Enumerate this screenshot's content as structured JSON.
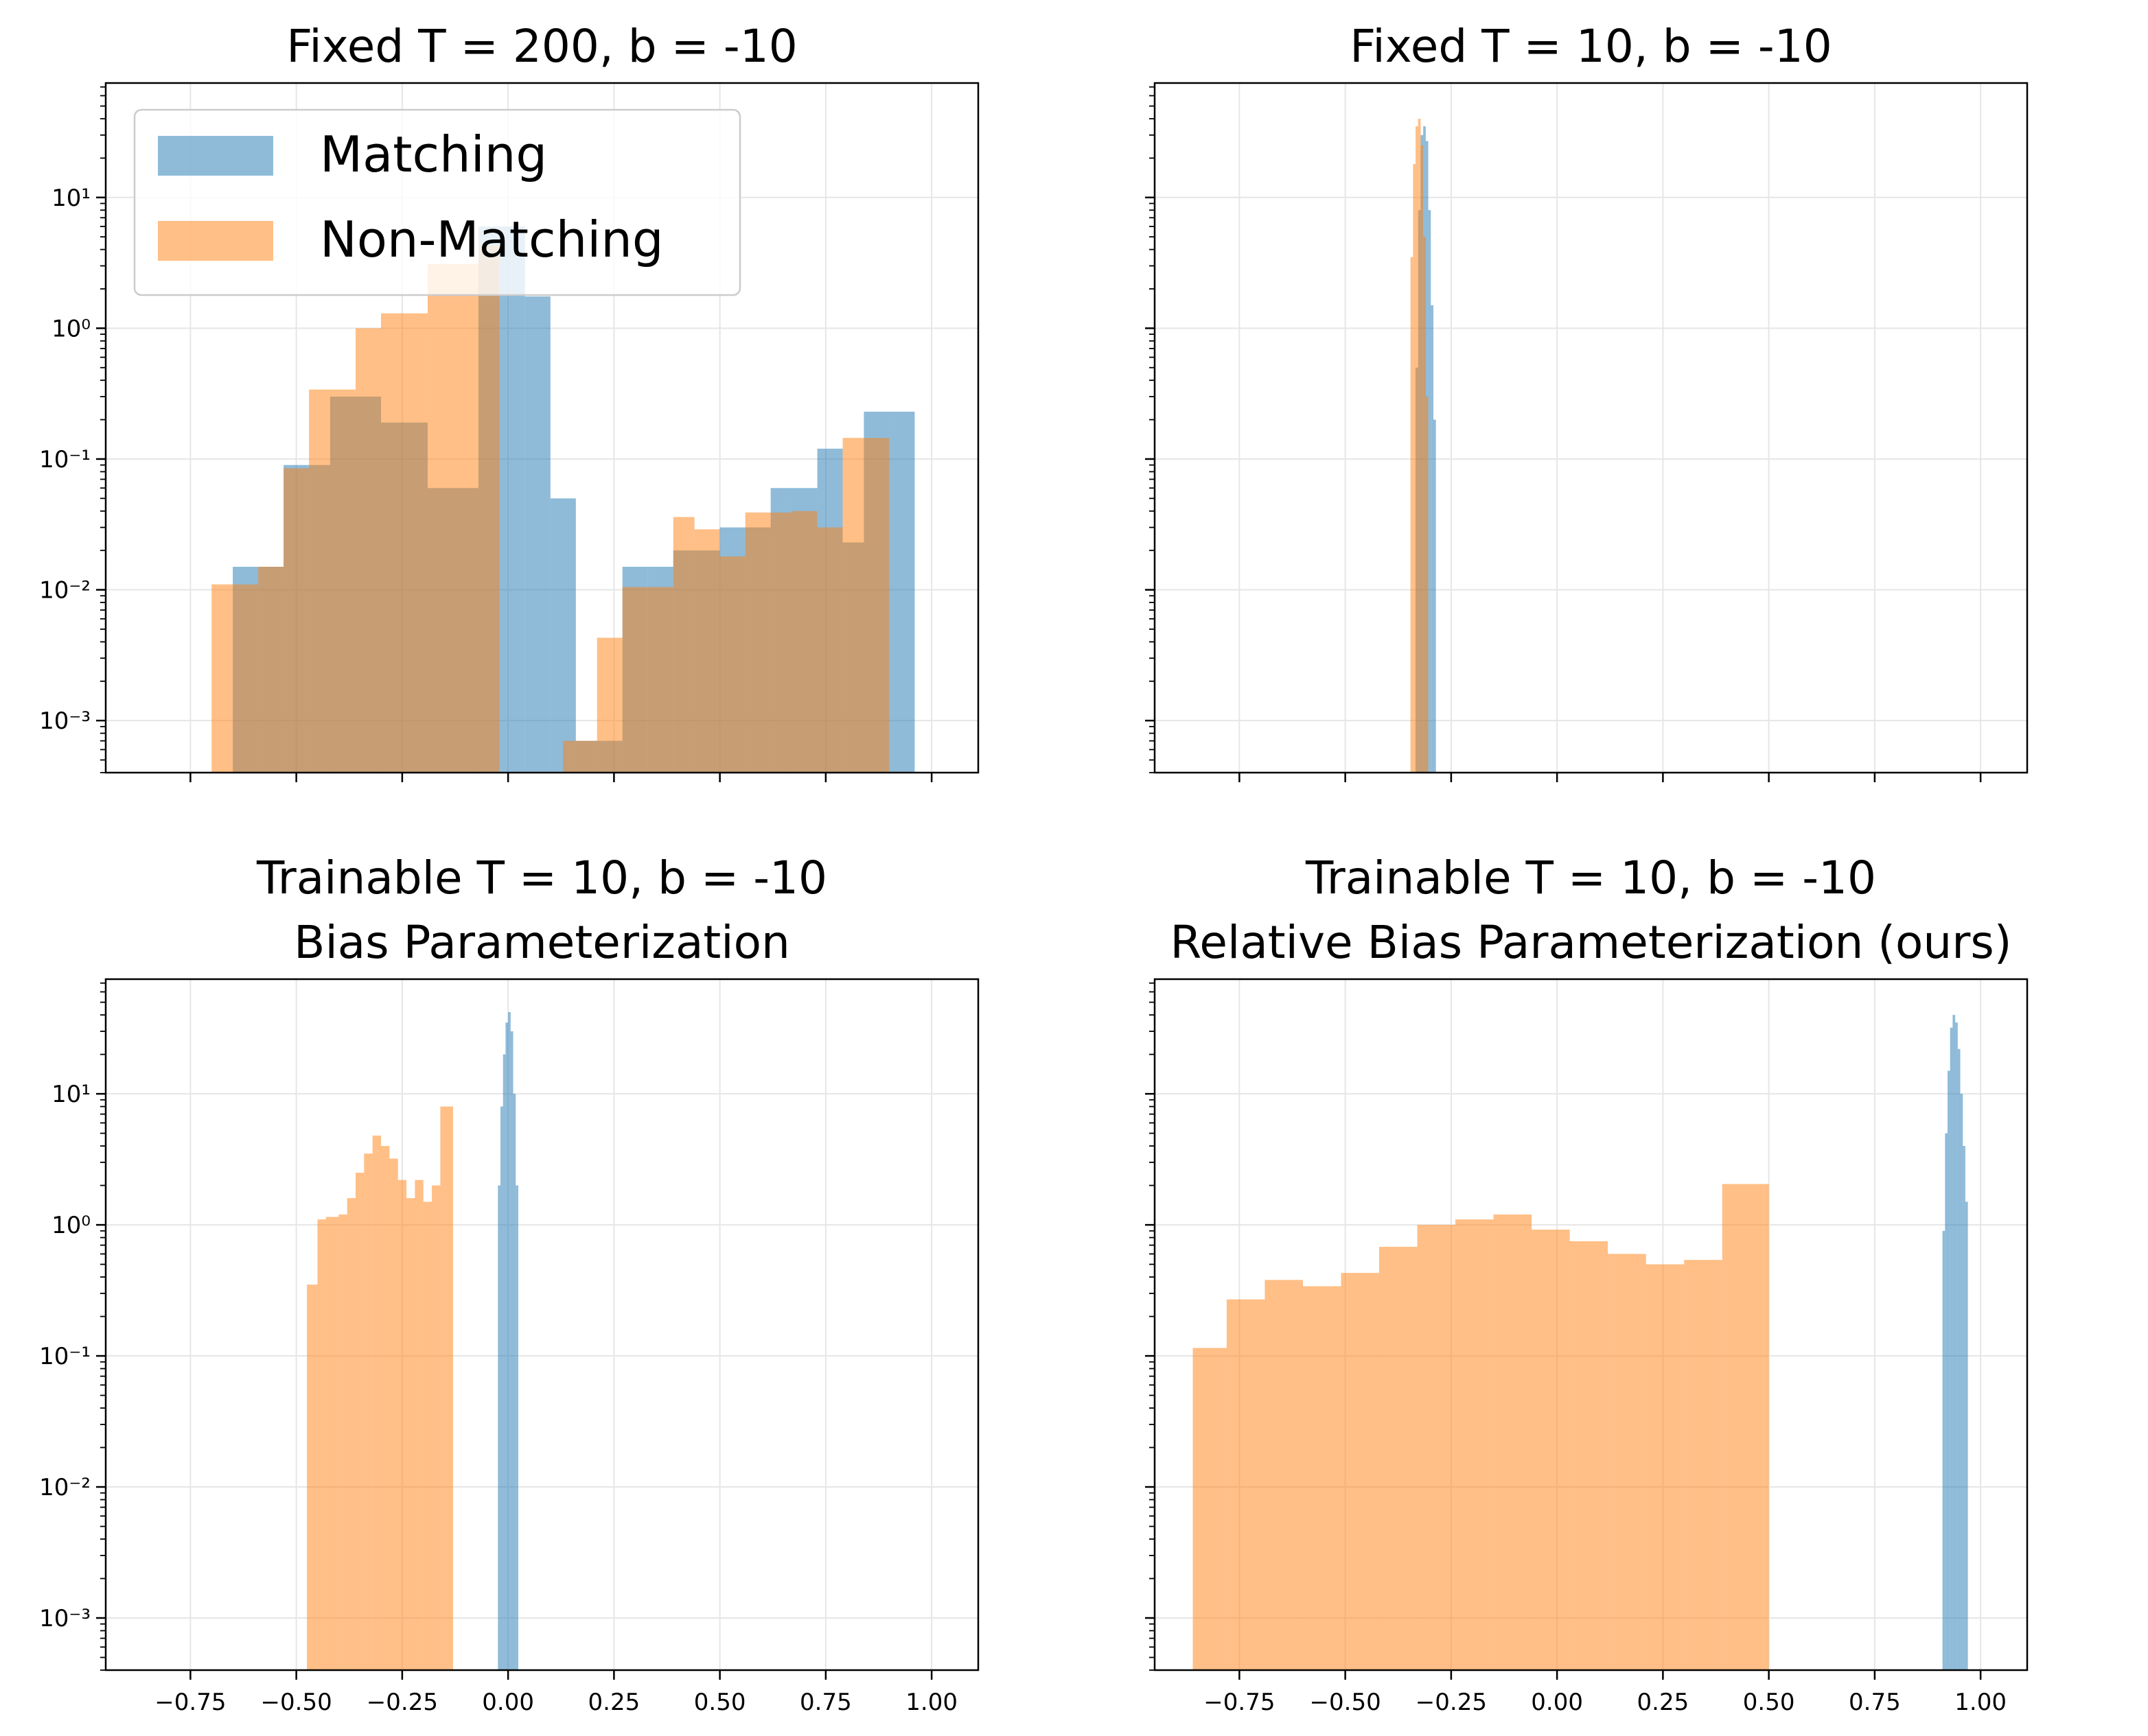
{
  "chart_data": [
    {
      "type": "histogram",
      "title": "Fixed T = 200, b = -10",
      "xlabel": "",
      "ylabel": "",
      "yscale": "log",
      "xlim": [
        -0.95,
        1.11
      ],
      "ylim": [
        0.0004,
        75
      ],
      "x_ticks": [
        -0.75,
        -0.5,
        -0.25,
        0.0,
        0.25,
        0.5,
        0.75,
        1.0
      ],
      "x_tick_labels_shown": false,
      "y_tick_labels": [
        "10⁻³",
        "10⁻²",
        "10⁻¹",
        "10⁰",
        "10¹"
      ],
      "grid": true,
      "legend": {
        "position": "top-left",
        "entries": [
          "Matching",
          "Non-Matching"
        ]
      },
      "series": [
        {
          "name": "Matching",
          "color": "#1f77b4",
          "bins": [
            {
              "x0": -0.65,
              "x1": -0.59,
              "y": 0.015
            },
            {
              "x0": -0.59,
              "x1": -0.53,
              "y": 0.015
            },
            {
              "x0": -0.53,
              "x1": -0.47,
              "y": 0.09
            },
            {
              "x0": -0.47,
              "x1": -0.42,
              "y": 0.09
            },
            {
              "x0": -0.42,
              "x1": -0.36,
              "y": 0.3
            },
            {
              "x0": -0.36,
              "x1": -0.3,
              "y": 0.3
            },
            {
              "x0": -0.3,
              "x1": -0.24,
              "y": 0.19
            },
            {
              "x0": -0.24,
              "x1": -0.19,
              "y": 0.19
            },
            {
              "x0": -0.19,
              "x1": -0.13,
              "y": 0.06
            },
            {
              "x0": -0.13,
              "x1": -0.07,
              "y": 0.06
            },
            {
              "x0": -0.07,
              "x1": -0.02,
              "y": 6.0
            },
            {
              "x0": -0.02,
              "x1": 0.04,
              "y": 6.0
            },
            {
              "x0": 0.04,
              "x1": 0.1,
              "y": 1.75
            },
            {
              "x0": 0.1,
              "x1": 0.16,
              "y": 0.05
            },
            {
              "x0": 0.16,
              "x1": 0.21,
              "y": 0.0007
            },
            {
              "x0": 0.21,
              "x1": 0.27,
              "y": 0.0007
            },
            {
              "x0": 0.27,
              "x1": 0.33,
              "y": 0.015
            },
            {
              "x0": 0.33,
              "x1": 0.39,
              "y": 0.015
            },
            {
              "x0": 0.39,
              "x1": 0.44,
              "y": 0.02
            },
            {
              "x0": 0.44,
              "x1": 0.5,
              "y": 0.02
            },
            {
              "x0": 0.5,
              "x1": 0.56,
              "y": 0.03
            },
            {
              "x0": 0.56,
              "x1": 0.62,
              "y": 0.03
            },
            {
              "x0": 0.62,
              "x1": 0.67,
              "y": 0.06
            },
            {
              "x0": 0.67,
              "x1": 0.73,
              "y": 0.06
            },
            {
              "x0": 0.73,
              "x1": 0.79,
              "y": 0.12
            },
            {
              "x0": 0.79,
              "x1": 0.84,
              "y": 0.023
            },
            {
              "x0": 0.84,
              "x1": 0.9,
              "y": 0.23
            },
            {
              "x0": 0.9,
              "x1": 0.96,
              "y": 0.23
            }
          ]
        },
        {
          "name": "Non-Matching",
          "color": "#ff7f0e",
          "bins": [
            {
              "x0": -0.7,
              "x1": -0.64,
              "y": 0.011
            },
            {
              "x0": -0.64,
              "x1": -0.59,
              "y": 0.011
            },
            {
              "x0": -0.59,
              "x1": -0.53,
              "y": 0.015
            },
            {
              "x0": -0.53,
              "x1": -0.47,
              "y": 0.085
            },
            {
              "x0": -0.47,
              "x1": -0.42,
              "y": 0.34
            },
            {
              "x0": -0.42,
              "x1": -0.36,
              "y": 0.34
            },
            {
              "x0": -0.36,
              "x1": -0.3,
              "y": 1.0
            },
            {
              "x0": -0.3,
              "x1": -0.24,
              "y": 1.3
            },
            {
              "x0": -0.24,
              "x1": -0.19,
              "y": 1.3
            },
            {
              "x0": -0.19,
              "x1": -0.13,
              "y": 3.1
            },
            {
              "x0": -0.13,
              "x1": -0.07,
              "y": 3.1
            },
            {
              "x0": -0.07,
              "x1": -0.02,
              "y": 4.3
            },
            {
              "x0": -0.02,
              "x1": 0.04,
              "y": 0.0
            },
            {
              "x0": 0.13,
              "x1": 0.21,
              "y": 0.0007
            },
            {
              "x0": 0.21,
              "x1": 0.27,
              "y": 0.0043
            },
            {
              "x0": 0.27,
              "x1": 0.33,
              "y": 0.0105
            },
            {
              "x0": 0.33,
              "x1": 0.39,
              "y": 0.0105
            },
            {
              "x0": 0.39,
              "x1": 0.44,
              "y": 0.036
            },
            {
              "x0": 0.44,
              "x1": 0.5,
              "y": 0.029
            },
            {
              "x0": 0.5,
              "x1": 0.56,
              "y": 0.018
            },
            {
              "x0": 0.56,
              "x1": 0.62,
              "y": 0.039
            },
            {
              "x0": 0.62,
              "x1": 0.67,
              "y": 0.039
            },
            {
              "x0": 0.67,
              "x1": 0.73,
              "y": 0.04
            },
            {
              "x0": 0.73,
              "x1": 0.79,
              "y": 0.03
            },
            {
              "x0": 0.79,
              "x1": 0.84,
              "y": 0.145
            },
            {
              "x0": 0.84,
              "x1": 0.9,
              "y": 0.145
            }
          ]
        }
      ]
    },
    {
      "type": "histogram",
      "title": "Fixed T = 10, b = -10",
      "xlabel": "",
      "ylabel": "",
      "yscale": "log",
      "xlim": [
        -0.95,
        1.11
      ],
      "ylim": [
        0.0004,
        75
      ],
      "x_ticks": [
        -0.75,
        -0.5,
        -0.25,
        0.0,
        0.25,
        0.5,
        0.75,
        1.0
      ],
      "x_tick_labels_shown": false,
      "y_tick_labels": [],
      "grid": true,
      "series": [
        {
          "name": "Matching",
          "color": "#1f77b4",
          "bins": [
            {
              "x0": -0.34,
              "x1": -0.334,
              "y": 0.0004
            },
            {
              "x0": -0.334,
              "x1": -0.328,
              "y": 0.5
            },
            {
              "x0": -0.328,
              "x1": -0.322,
              "y": 8.0
            },
            {
              "x0": -0.322,
              "x1": -0.316,
              "y": 30.0
            },
            {
              "x0": -0.316,
              "x1": -0.31,
              "y": 35.0
            },
            {
              "x0": -0.31,
              "x1": -0.304,
              "y": 27.0
            },
            {
              "x0": -0.304,
              "x1": -0.298,
              "y": 8.0
            },
            {
              "x0": -0.298,
              "x1": -0.292,
              "y": 1.5
            },
            {
              "x0": -0.292,
              "x1": -0.286,
              "y": 0.2
            }
          ]
        },
        {
          "name": "Non-Matching",
          "color": "#ff7f0e",
          "bins": [
            {
              "x0": -0.352,
              "x1": -0.346,
              "y": 0.0004
            },
            {
              "x0": -0.346,
              "x1": -0.34,
              "y": 3.5
            },
            {
              "x0": -0.34,
              "x1": -0.334,
              "y": 18.0
            },
            {
              "x0": -0.334,
              "x1": -0.328,
              "y": 35.0
            },
            {
              "x0": -0.328,
              "x1": -0.322,
              "y": 40.0
            },
            {
              "x0": -0.322,
              "x1": -0.316,
              "y": 25.0
            },
            {
              "x0": -0.316,
              "x1": -0.31,
              "y": 5.0
            },
            {
              "x0": -0.31,
              "x1": -0.304,
              "y": 0.3
            }
          ]
        }
      ]
    },
    {
      "type": "histogram",
      "title": "Trainable T = 10, b = -10\n Bias Parameterization",
      "title_lines": [
        "Trainable T = 10, b = -10",
        "Bias Parameterization"
      ],
      "xlabel": "",
      "ylabel": "",
      "yscale": "log",
      "xlim": [
        -0.95,
        1.11
      ],
      "ylim": [
        0.0004,
        75
      ],
      "x_ticks": [
        -0.75,
        -0.5,
        -0.25,
        0.0,
        0.25,
        0.5,
        0.75,
        1.0
      ],
      "x_tick_labels": [
        "−0.75",
        "−0.50",
        "−0.25",
        "0.00",
        "0.25",
        "0.50",
        "0.75",
        "1.00"
      ],
      "y_tick_labels": [
        "10⁻³",
        "10⁻²",
        "10⁻¹",
        "10⁰",
        "10¹"
      ],
      "grid": true,
      "series": [
        {
          "name": "Matching",
          "color": "#1f77b4",
          "bins": [
            {
              "x0": -0.03,
              "x1": -0.024,
              "y": 0.0004
            },
            {
              "x0": -0.024,
              "x1": -0.018,
              "y": 2.0
            },
            {
              "x0": -0.018,
              "x1": -0.012,
              "y": 8.0
            },
            {
              "x0": -0.012,
              "x1": -0.006,
              "y": 20.0
            },
            {
              "x0": -0.006,
              "x1": 0.0,
              "y": 35.0
            },
            {
              "x0": 0.0,
              "x1": 0.006,
              "y": 42.0
            },
            {
              "x0": 0.006,
              "x1": 0.012,
              "y": 30.0
            },
            {
              "x0": 0.012,
              "x1": 0.018,
              "y": 10.0
            },
            {
              "x0": 0.018,
              "x1": 0.024,
              "y": 2.0
            }
          ]
        },
        {
          "name": "Non-Matching",
          "color": "#ff7f0e",
          "bins": [
            {
              "x0": -0.475,
              "x1": -0.45,
              "y": 0.35
            },
            {
              "x0": -0.45,
              "x1": -0.43,
              "y": 1.1
            },
            {
              "x0": -0.43,
              "x1": -0.4,
              "y": 1.15
            },
            {
              "x0": -0.4,
              "x1": -0.38,
              "y": 1.2
            },
            {
              "x0": -0.38,
              "x1": -0.36,
              "y": 1.6
            },
            {
              "x0": -0.36,
              "x1": -0.34,
              "y": 2.5
            },
            {
              "x0": -0.34,
              "x1": -0.32,
              "y": 3.5
            },
            {
              "x0": -0.32,
              "x1": -0.3,
              "y": 4.8
            },
            {
              "x0": -0.3,
              "x1": -0.28,
              "y": 4.0
            },
            {
              "x0": -0.28,
              "x1": -0.26,
              "y": 3.2
            },
            {
              "x0": -0.26,
              "x1": -0.24,
              "y": 2.2
            },
            {
              "x0": -0.24,
              "x1": -0.22,
              "y": 1.6
            },
            {
              "x0": -0.22,
              "x1": -0.2,
              "y": 2.2
            },
            {
              "x0": -0.2,
              "x1": -0.18,
              "y": 1.5
            },
            {
              "x0": -0.18,
              "x1": -0.16,
              "y": 2.0
            },
            {
              "x0": -0.16,
              "x1": -0.13,
              "y": 8.0
            }
          ]
        }
      ]
    },
    {
      "type": "histogram",
      "title": "Trainable T = 10, b = -10\nRelative Bias Parameterization (ours)",
      "title_lines": [
        "Trainable T = 10, b = -10",
        "Relative Bias Parameterization (ours)"
      ],
      "xlabel": "",
      "ylabel": "",
      "yscale": "log",
      "xlim": [
        -0.95,
        1.11
      ],
      "ylim": [
        0.0004,
        75
      ],
      "x_ticks": [
        -0.75,
        -0.5,
        -0.25,
        0.0,
        0.25,
        0.5,
        0.75,
        1.0
      ],
      "x_tick_labels": [
        "−0.75",
        "−0.50",
        "−0.25",
        "0.00",
        "0.25",
        "0.50",
        "0.75",
        "1.00"
      ],
      "y_tick_labels": [],
      "grid": true,
      "series": [
        {
          "name": "Matching",
          "color": "#1f77b4",
          "bins": [
            {
              "x0": 0.91,
              "x1": 0.916,
              "y": 0.9
            },
            {
              "x0": 0.916,
              "x1": 0.922,
              "y": 5.0
            },
            {
              "x0": 0.922,
              "x1": 0.928,
              "y": 15.0
            },
            {
              "x0": 0.928,
              "x1": 0.934,
              "y": 32.0
            },
            {
              "x0": 0.934,
              "x1": 0.94,
              "y": 40.0
            },
            {
              "x0": 0.94,
              "x1": 0.946,
              "y": 35.0
            },
            {
              "x0": 0.946,
              "x1": 0.952,
              "y": 22.0
            },
            {
              "x0": 0.952,
              "x1": 0.958,
              "y": 10.0
            },
            {
              "x0": 0.958,
              "x1": 0.964,
              "y": 4.0
            },
            {
              "x0": 0.964,
              "x1": 0.97,
              "y": 1.5
            }
          ]
        },
        {
          "name": "Non-Matching",
          "color": "#ff7f0e",
          "bins": [
            {
              "x0": -0.86,
              "x1": -0.78,
              "y": 0.115
            },
            {
              "x0": -0.78,
              "x1": -0.69,
              "y": 0.27
            },
            {
              "x0": -0.69,
              "x1": -0.6,
              "y": 0.38
            },
            {
              "x0": -0.6,
              "x1": -0.51,
              "y": 0.34
            },
            {
              "x0": -0.51,
              "x1": -0.42,
              "y": 0.43
            },
            {
              "x0": -0.42,
              "x1": -0.33,
              "y": 0.68
            },
            {
              "x0": -0.33,
              "x1": -0.24,
              "y": 1.0
            },
            {
              "x0": -0.24,
              "x1": -0.15,
              "y": 1.1
            },
            {
              "x0": -0.15,
              "x1": -0.06,
              "y": 1.2
            },
            {
              "x0": -0.06,
              "x1": 0.03,
              "y": 0.92
            },
            {
              "x0": 0.03,
              "x1": 0.12,
              "y": 0.75
            },
            {
              "x0": 0.12,
              "x1": 0.21,
              "y": 0.6
            },
            {
              "x0": 0.21,
              "x1": 0.3,
              "y": 0.5
            },
            {
              "x0": 0.3,
              "x1": 0.39,
              "y": 0.54
            },
            {
              "x0": 0.39,
              "x1": 0.5,
              "y": 2.05
            }
          ]
        }
      ]
    }
  ]
}
